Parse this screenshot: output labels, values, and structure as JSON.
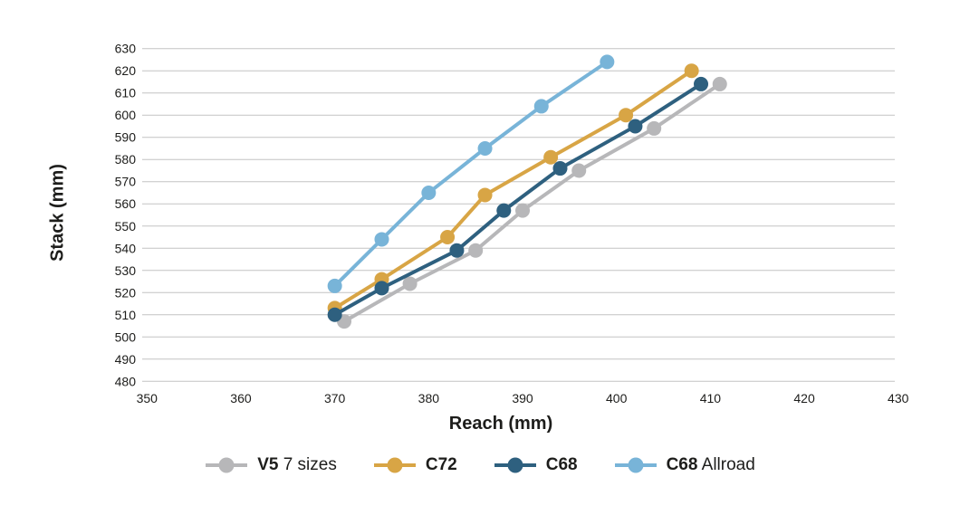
{
  "chart_data": {
    "type": "line",
    "title": "",
    "xlabel": "Reach (mm)",
    "ylabel": "Stack (mm)",
    "xlim": [
      350,
      430
    ],
    "xtick_step": 10,
    "ylim": [
      480,
      630
    ],
    "ytick_step": 10,
    "grid": "horizontal-only",
    "legend_position": "bottom",
    "text_color": "#1d1d1b",
    "grid_color": "#c3c3c3",
    "series": [
      {
        "name": "V5 7 sizes",
        "label_bold": "V5",
        "label_rest": " 7 sizes",
        "color": "#b7b7b9",
        "points": [
          [
            371,
            507
          ],
          [
            378,
            524
          ],
          [
            385,
            539
          ],
          [
            390,
            557
          ],
          [
            396,
            575
          ],
          [
            404,
            594
          ],
          [
            411,
            614
          ]
        ]
      },
      {
        "name": "C72",
        "label_bold": "C72",
        "label_rest": "",
        "color": "#d8a545",
        "points": [
          [
            370,
            513
          ],
          [
            375,
            526
          ],
          [
            382,
            545
          ],
          [
            386,
            564
          ],
          [
            393,
            581
          ],
          [
            401,
            600
          ],
          [
            408,
            620
          ]
        ]
      },
      {
        "name": "C68",
        "label_bold": "C68",
        "label_rest": "",
        "color": "#2e607f",
        "points": [
          [
            370,
            510
          ],
          [
            375,
            522
          ],
          [
            383,
            539
          ],
          [
            388,
            557
          ],
          [
            394,
            576
          ],
          [
            402,
            595
          ],
          [
            409,
            614
          ]
        ]
      },
      {
        "name": "C68 Allroad",
        "label_bold": "C68",
        "label_rest": " Allroad",
        "color": "#78b4d8",
        "points": [
          [
            370,
            523
          ],
          [
            375,
            544
          ],
          [
            380,
            565
          ],
          [
            386,
            585
          ],
          [
            392,
            604
          ],
          [
            399,
            624
          ]
        ]
      }
    ]
  }
}
